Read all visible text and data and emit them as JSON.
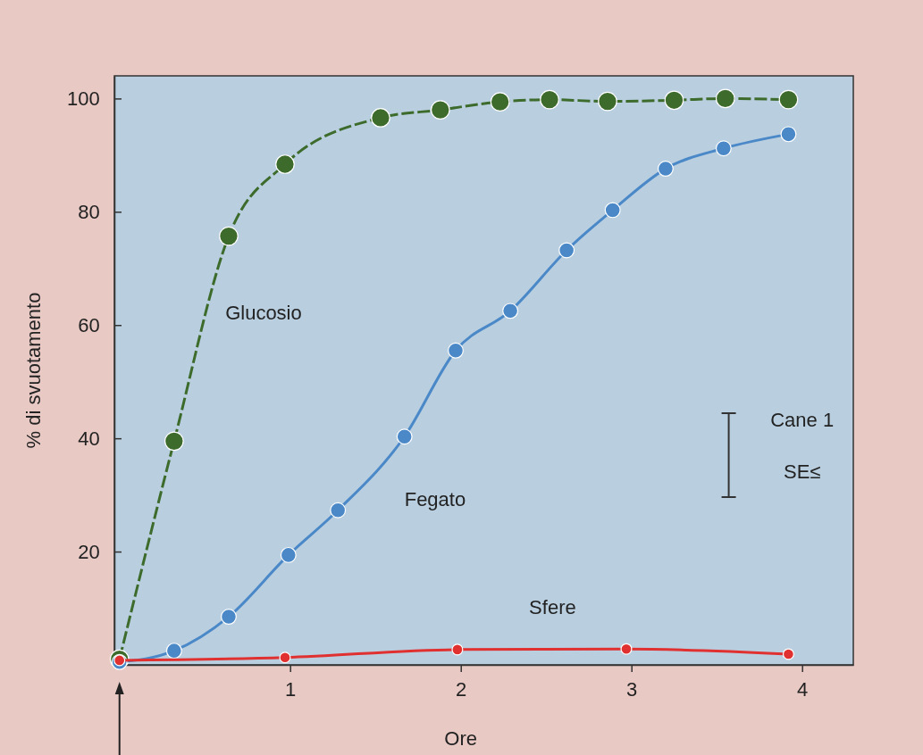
{
  "chart_data": {
    "type": "line",
    "xlabel": "Ore",
    "ylabel": "% di svuotamento",
    "xlim": [
      -0.03,
      4.3
    ],
    "ylim": [
      0,
      104
    ],
    "xticks": [
      1,
      2,
      3,
      4
    ],
    "yticks": [
      20,
      40,
      60,
      80,
      100
    ],
    "marker": "circle",
    "grid": false,
    "series": [
      {
        "name": "Glucosio",
        "color": "#3d6b2c",
        "line_style": "dashed",
        "x": [
          0,
          0.32,
          0.64,
          0.97,
          1.53,
          1.88,
          2.23,
          2.52,
          2.86,
          3.25,
          3.55,
          3.92
        ],
        "values": [
          1,
          39.5,
          75.7,
          88.4,
          96.6,
          98,
          99.4,
          99.8,
          99.5,
          99.7,
          100,
          99.8
        ]
      },
      {
        "name": "Fegato",
        "color": "#4a88c8",
        "line_style": "solid",
        "x": [
          0,
          0.32,
          0.64,
          0.99,
          1.28,
          1.67,
          1.97,
          2.29,
          2.62,
          2.89,
          3.2,
          3.54,
          3.92
        ],
        "values": [
          0.5,
          2.5,
          8.5,
          19.4,
          27.3,
          40.3,
          55.5,
          62.5,
          73.2,
          80.3,
          87.6,
          91.2,
          93.7
        ]
      },
      {
        "name": "Sfere",
        "color": "#e03030",
        "line_style": "solid",
        "x": [
          0,
          0.97,
          1.98,
          2.97,
          3.92
        ],
        "values": [
          0.8,
          1.3,
          2.7,
          2.8,
          1.9
        ]
      }
    ],
    "annotations": [
      "Cane 1",
      "SE≤"
    ]
  }
}
